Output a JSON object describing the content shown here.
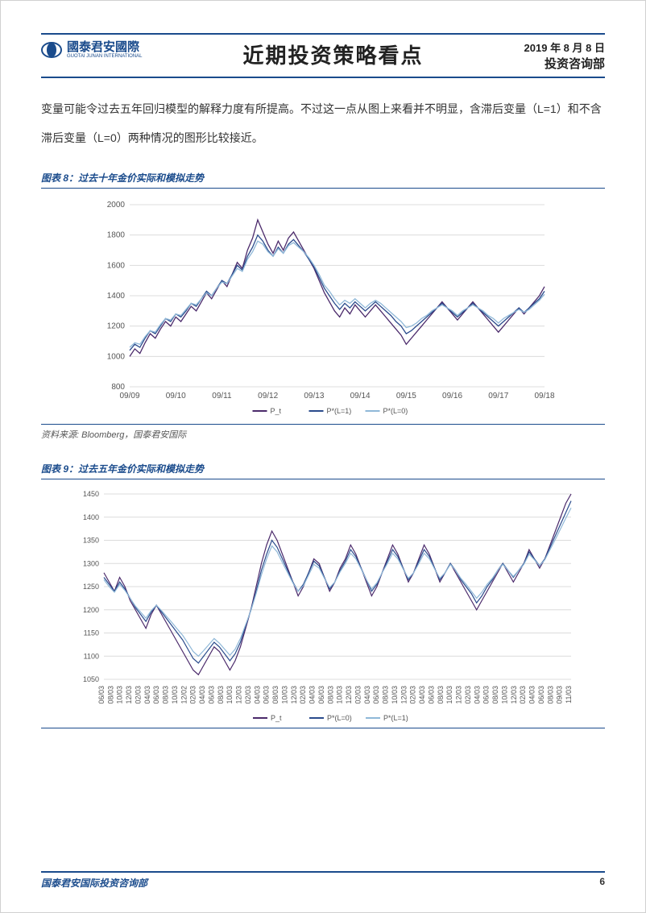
{
  "header": {
    "logo_cn": "國泰君安國際",
    "logo_en": "GUOTAI JUNAN INTERNATIONAL",
    "title": "近期投资策略看点",
    "date": "2019 年 8 月 8 日",
    "dept": "投资咨询部"
  },
  "body_paragraph": "变量可能令过去五年回归模型的解释力度有所提高。不过这一点从图上来看并不明显，含滞后变量（L=1）和不含滞后变量（L=0）两种情况的图形比较接近。",
  "source_line": "资料来源: Bloomberg，国泰君安国际",
  "footer": {
    "left": "国泰君安国际投资咨询部",
    "page": "6"
  },
  "chart8": {
    "title": "图表 8：过去十年金价实际和模拟走势",
    "type": "line",
    "ylim": [
      800,
      2000
    ],
    "ytick_step": 200,
    "yticks": [
      800,
      1000,
      1200,
      1400,
      1600,
      1800,
      2000
    ],
    "x_labels": [
      "09/09",
      "09/10",
      "09/11",
      "09/12",
      "09/13",
      "09/14",
      "09/15",
      "09/16",
      "09/17",
      "09/18"
    ],
    "grid_color": "#dcdcdc",
    "background_color": "#ffffff",
    "label_fontsize": 10,
    "series": [
      {
        "name": "P_t",
        "color": "#4b2a6b",
        "width": 1.3,
        "data": [
          1000,
          1050,
          1020,
          1090,
          1150,
          1120,
          1180,
          1230,
          1200,
          1260,
          1230,
          1280,
          1330,
          1300,
          1360,
          1420,
          1380,
          1440,
          1500,
          1460,
          1540,
          1620,
          1580,
          1700,
          1780,
          1900,
          1820,
          1740,
          1680,
          1760,
          1700,
          1780,
          1820,
          1760,
          1700,
          1640,
          1580,
          1500,
          1420,
          1360,
          1300,
          1260,
          1320,
          1280,
          1340,
          1300,
          1260,
          1300,
          1340,
          1300,
          1260,
          1220,
          1180,
          1140,
          1080,
          1120,
          1160,
          1200,
          1240,
          1280,
          1320,
          1360,
          1320,
          1280,
          1240,
          1280,
          1320,
          1360,
          1320,
          1280,
          1240,
          1200,
          1160,
          1200,
          1240,
          1280,
          1320,
          1280,
          1320,
          1360,
          1400,
          1460
        ]
      },
      {
        "name": "P*(L=1)",
        "color": "#2a4b8c",
        "width": 1.3,
        "data": [
          1040,
          1080,
          1060,
          1120,
          1170,
          1150,
          1200,
          1250,
          1230,
          1280,
          1260,
          1300,
          1350,
          1330,
          1380,
          1430,
          1400,
          1450,
          1500,
          1480,
          1540,
          1600,
          1570,
          1660,
          1720,
          1800,
          1760,
          1700,
          1660,
          1720,
          1680,
          1740,
          1770,
          1730,
          1690,
          1640,
          1590,
          1520,
          1450,
          1400,
          1350,
          1310,
          1350,
          1320,
          1360,
          1330,
          1300,
          1330,
          1360,
          1330,
          1300,
          1270,
          1230,
          1200,
          1150,
          1170,
          1200,
          1230,
          1260,
          1290,
          1320,
          1350,
          1320,
          1290,
          1260,
          1290,
          1320,
          1350,
          1320,
          1290,
          1260,
          1230,
          1200,
          1230,
          1260,
          1290,
          1320,
          1290,
          1320,
          1350,
          1380,
          1430
        ]
      },
      {
        "name": "P*(L=0)",
        "color": "#8fb8d8",
        "width": 1.3,
        "data": [
          1060,
          1090,
          1080,
          1130,
          1170,
          1160,
          1210,
          1250,
          1240,
          1280,
          1270,
          1310,
          1350,
          1340,
          1380,
          1420,
          1400,
          1450,
          1490,
          1480,
          1530,
          1580,
          1560,
          1640,
          1690,
          1760,
          1740,
          1690,
          1660,
          1710,
          1680,
          1730,
          1750,
          1720,
          1690,
          1650,
          1600,
          1540,
          1470,
          1430,
          1380,
          1340,
          1370,
          1350,
          1380,
          1350,
          1320,
          1350,
          1370,
          1350,
          1320,
          1290,
          1260,
          1230,
          1190,
          1200,
          1220,
          1250,
          1270,
          1300,
          1320,
          1340,
          1320,
          1300,
          1270,
          1300,
          1320,
          1340,
          1320,
          1300,
          1270,
          1250,
          1220,
          1250,
          1270,
          1290,
          1310,
          1290,
          1310,
          1340,
          1370,
          1410
        ]
      }
    ],
    "legend_items": [
      "P_t",
      "P*(L=1)",
      "P*(L=0)"
    ]
  },
  "chart9": {
    "title": "图表 9：过去五年金价实际和模拟走势",
    "type": "line",
    "ylim": [
      1050,
      1450
    ],
    "ytick_step": 50,
    "yticks": [
      1050,
      1100,
      1150,
      1200,
      1250,
      1300,
      1350,
      1400,
      1450
    ],
    "x_labels": [
      "06/03",
      "08/03",
      "10/03",
      "12/03",
      "02/03",
      "04/03",
      "06/03",
      "08/03",
      "10/03",
      "12/02",
      "02/03",
      "04/03",
      "06/03",
      "08/03",
      "10/03",
      "12/03",
      "02/03",
      "04/03",
      "06/03",
      "08/03",
      "10/03",
      "12/03",
      "02/03",
      "04/03",
      "06/03",
      "08/03",
      "10/03",
      "12/03",
      "02/03",
      "04/03",
      "06/03",
      "08/03",
      "10/03",
      "12/03",
      "02/03",
      "04/03",
      "06/03",
      "08/03",
      "10/03",
      "12/03",
      "02/03",
      "04/03",
      "06/03",
      "08/03",
      "10/03",
      "12/03",
      "02/03",
      "04/03",
      "06/03",
      "08/03",
      "09/03",
      "11/03"
    ],
    "grid_color": "#dcdcdc",
    "background_color": "#ffffff",
    "label_fontsize": 9,
    "series": [
      {
        "name": "P_t",
        "color": "#4b2a6b",
        "width": 1.2,
        "data": [
          1280,
          1260,
          1240,
          1270,
          1250,
          1220,
          1200,
          1180,
          1160,
          1190,
          1210,
          1190,
          1170,
          1150,
          1130,
          1110,
          1090,
          1070,
          1060,
          1080,
          1100,
          1120,
          1110,
          1090,
          1070,
          1090,
          1120,
          1160,
          1200,
          1250,
          1300,
          1340,
          1370,
          1350,
          1320,
          1290,
          1260,
          1230,
          1250,
          1280,
          1310,
          1300,
          1270,
          1240,
          1260,
          1290,
          1310,
          1340,
          1320,
          1290,
          1260,
          1230,
          1250,
          1280,
          1310,
          1340,
          1320,
          1290,
          1260,
          1280,
          1310,
          1340,
          1320,
          1290,
          1260,
          1280,
          1300,
          1280,
          1260,
          1240,
          1220,
          1200,
          1220,
          1240,
          1260,
          1280,
          1300,
          1280,
          1260,
          1280,
          1300,
          1330,
          1310,
          1290,
          1310,
          1340,
          1370,
          1400,
          1430,
          1450
        ]
      },
      {
        "name": "P*(L=0)",
        "color": "#2a4b8c",
        "width": 1.2,
        "data": [
          1270,
          1255,
          1240,
          1260,
          1245,
          1225,
          1205,
          1190,
          1175,
          1195,
          1210,
          1195,
          1180,
          1165,
          1150,
          1135,
          1115,
          1095,
          1085,
          1100,
          1115,
          1130,
          1120,
          1105,
          1090,
          1105,
          1130,
          1165,
          1200,
          1240,
          1285,
          1320,
          1350,
          1335,
          1310,
          1285,
          1260,
          1240,
          1255,
          1280,
          1305,
          1295,
          1270,
          1245,
          1260,
          1285,
          1305,
          1330,
          1315,
          1290,
          1265,
          1240,
          1255,
          1280,
          1305,
          1330,
          1315,
          1290,
          1265,
          1280,
          1305,
          1330,
          1315,
          1290,
          1265,
          1280,
          1300,
          1285,
          1265,
          1250,
          1235,
          1215,
          1230,
          1250,
          1265,
          1285,
          1300,
          1285,
          1270,
          1285,
          1300,
          1325,
          1310,
          1295,
          1310,
          1335,
          1360,
          1385,
          1410,
          1435
        ]
      },
      {
        "name": "P*(L=1)",
        "color": "#8fb8d8",
        "width": 1.2,
        "data": [
          1265,
          1250,
          1238,
          1255,
          1242,
          1225,
          1208,
          1195,
          1182,
          1198,
          1210,
          1198,
          1185,
          1172,
          1158,
          1145,
          1128,
          1110,
          1100,
          1112,
          1125,
          1138,
          1128,
          1115,
          1102,
          1115,
          1138,
          1168,
          1198,
          1235,
          1275,
          1310,
          1338,
          1325,
          1302,
          1280,
          1258,
          1240,
          1252,
          1275,
          1298,
          1290,
          1268,
          1248,
          1260,
          1282,
          1300,
          1322,
          1310,
          1288,
          1265,
          1245,
          1258,
          1280,
          1300,
          1322,
          1310,
          1288,
          1268,
          1280,
          1300,
          1322,
          1310,
          1288,
          1268,
          1280,
          1298,
          1285,
          1268,
          1255,
          1240,
          1225,
          1238,
          1255,
          1268,
          1285,
          1298,
          1285,
          1272,
          1285,
          1298,
          1320,
          1308,
          1295,
          1308,
          1330,
          1352,
          1375,
          1398,
          1420
        ]
      }
    ],
    "legend_items": [
      "P_t",
      "P*(L=0)",
      "P*(L=1)"
    ]
  }
}
